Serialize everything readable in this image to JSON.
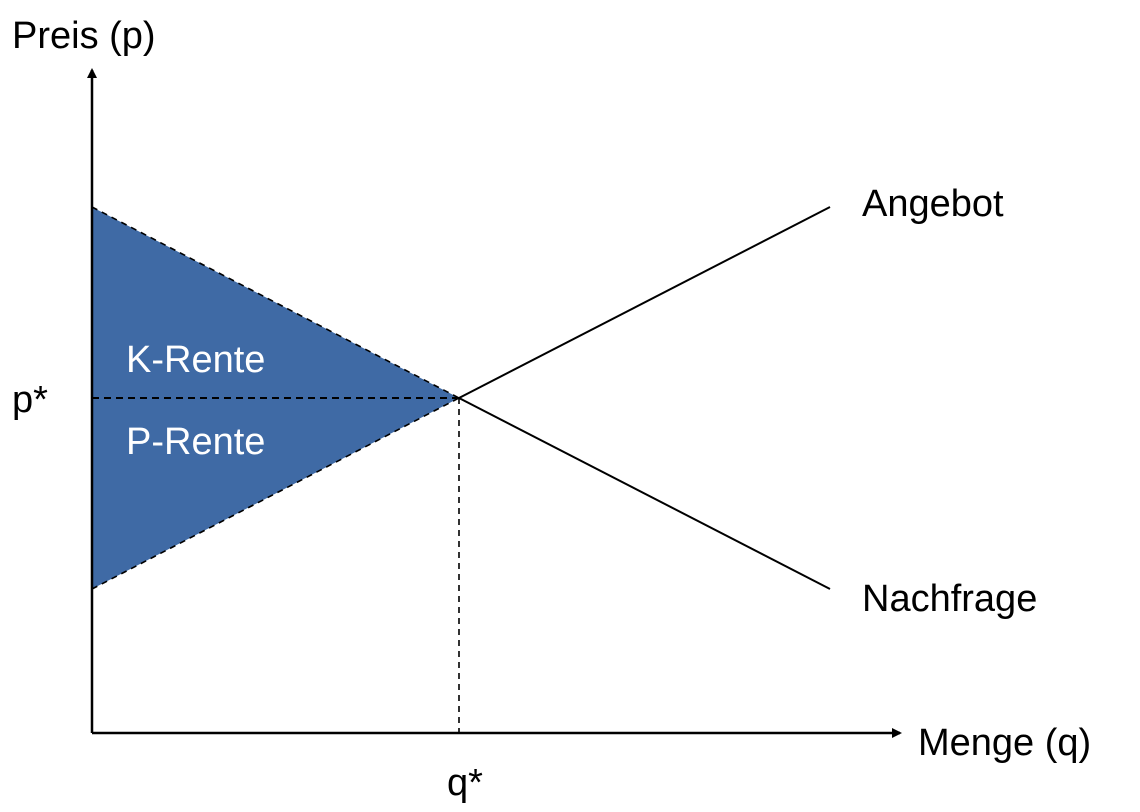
{
  "labels": {
    "y_axis": "Preis (p)",
    "x_axis": "Menge (q)",
    "p_star": "p*",
    "q_star": "q*",
    "supply": "Angebot",
    "demand": "Nachfrage",
    "consumer_surplus": "K-Rente",
    "producer_surplus": "P-Rente"
  },
  "colors": {
    "surplus_fill": "#3f6aa5",
    "line": "#000000",
    "surplus_text": "#ffffff"
  }
}
